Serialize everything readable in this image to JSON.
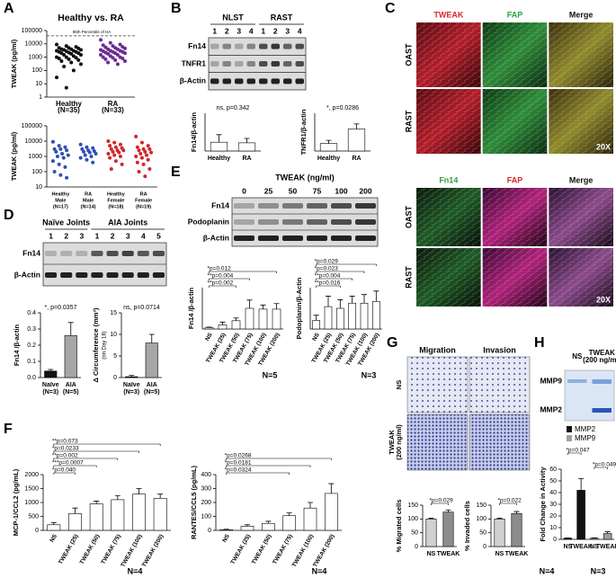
{
  "panels": {
    "A": {
      "label": "A",
      "top": {
        "type": "dot",
        "title": "Healthy vs. RA",
        "ylabel": "TWEAK (pg/ml)",
        "log": true,
        "ylim": [
          1,
          100000
        ],
        "yticks": [
          1,
          10,
          100,
          1000,
          10000,
          100000
        ],
        "threshold": 40000,
        "threshold_label": "95th Percentile of HA",
        "categories": [
          [
            "Healthy",
            "(N=35)"
          ],
          [
            "RA",
            "(N=33)"
          ]
        ],
        "colors": [
          "#111111",
          "#6a2c91"
        ],
        "values": [
          [
            9000,
            7000,
            6000,
            5000,
            5000,
            4500,
            4000,
            4000,
            3500,
            3500,
            3000,
            3000,
            2800,
            2500,
            2500,
            2200,
            2000,
            2000,
            1800,
            1500,
            1500,
            1200,
            1000,
            1000,
            900,
            800,
            700,
            600,
            500,
            400,
            300,
            200,
            100,
            30,
            5
          ],
          [
            20000,
            12000,
            9000,
            8000,
            7000,
            6000,
            5500,
            5000,
            4500,
            4000,
            4000,
            3500,
            3000,
            3000,
            2800,
            2500,
            2500,
            2200,
            2000,
            2000,
            1800,
            1500,
            1500,
            1200,
            1000,
            1000,
            900,
            800,
            700,
            600,
            500,
            400,
            300
          ]
        ]
      },
      "bottom": {
        "type": "dot",
        "ylabel": "TWEAK (pg/ml)",
        "log": true,
        "ylim": [
          10,
          100000
        ],
        "yticks": [
          10,
          100,
          1000,
          10000,
          100000
        ],
        "categories": [
          [
            "Healthy",
            "Male",
            "(N=17)"
          ],
          [
            "RA",
            "Male",
            "(N=14)"
          ],
          [
            "Healthy",
            "Female",
            "(N=18)"
          ],
          [
            "RA",
            "Female",
            "(N=19)"
          ]
        ],
        "colors": [
          "#2f4fb5",
          "#2f4fb5",
          "#d0262b",
          "#d0262b"
        ],
        "values": [
          [
            9000,
            5000,
            4000,
            3000,
            3000,
            2500,
            2000,
            1500,
            1200,
            1000,
            800,
            500,
            300,
            200,
            100,
            60,
            40
          ],
          [
            6000,
            4000,
            3500,
            3000,
            2500,
            2200,
            2000,
            1800,
            1500,
            1200,
            1000,
            800,
            600,
            400
          ],
          [
            10000,
            8000,
            6000,
            5000,
            4000,
            3500,
            3000,
            2500,
            2500,
            2000,
            1800,
            1500,
            1200,
            1000,
            800,
            500,
            300,
            150
          ],
          [
            20000,
            8000,
            5000,
            4000,
            3000,
            3000,
            2500,
            2000,
            1800,
            1500,
            1200,
            1000,
            800,
            600,
            400,
            300,
            150,
            100,
            50
          ]
        ]
      }
    },
    "B": {
      "label": "B",
      "blot": {
        "groups": [
          "NLST",
          "RAST"
        ],
        "lanes": [
          "1",
          "2",
          "3",
          "4",
          "1",
          "2",
          "3",
          "4"
        ],
        "rows": [
          "Fn14",
          "TNFR1",
          "β-Actin"
        ]
      },
      "fn14": {
        "type": "bar",
        "ylabel": "Fn14/β-actin",
        "ylim": [
          0,
          3
        ],
        "categories": [
          "Healthy",
          "RA"
        ],
        "values": [
          0.7,
          0.65
        ],
        "errors": [
          0.6,
          0.35
        ],
        "color": "#ffffff",
        "annotations": [
          "ns, p=0.342"
        ]
      },
      "tnfr1": {
        "type": "bar",
        "ylabel": "TNFR1/β-actin",
        "ylim": [
          0,
          0.6
        ],
        "categories": [
          "Healthy",
          "RA"
        ],
        "values": [
          0.12,
          0.35
        ],
        "errors": [
          0.05,
          0.08
        ],
        "color": "#ffffff",
        "annotations": [
          "*, p=0.0286"
        ]
      }
    },
    "C": {
      "label": "C",
      "top": {
        "columns": [
          "TWEAK",
          "FAP",
          "Merge"
        ],
        "column_colors": [
          "#d9262b",
          "#2ea043",
          "#111111"
        ],
        "rows": [
          "OAST",
          "RAST"
        ],
        "magnification": "20X"
      },
      "bottom": {
        "columns": [
          "Fn14",
          "FAP",
          "Merge"
        ],
        "column_colors": [
          "#2ea043",
          "#d9262b",
          "#111111"
        ],
        "rows": [
          "OAST",
          "RAST"
        ],
        "magnification": "20X"
      }
    },
    "D": {
      "label": "D",
      "blot": {
        "groups": [
          "Naïve Joints",
          "AIA Joints"
        ],
        "lanes": [
          "1",
          "2",
          "3",
          "1",
          "2",
          "3",
          "4",
          "5"
        ],
        "rows": [
          "Fn14",
          "β-Actin"
        ]
      },
      "fn14": {
        "type": "bar",
        "ylabel": "Fn14 /β-actin",
        "ylim": [
          0,
          0.4
        ],
        "yticks": [
          {
            "value": 0,
            "label": "0.0"
          },
          {
            "value": 0.1,
            "label": "0.1"
          },
          {
            "value": 0.2,
            "label": "0.2"
          },
          {
            "value": 0.3,
            "label": "0.3"
          },
          {
            "value": 0.4,
            "label": "0.4"
          }
        ],
        "categories": [
          "Naïve",
          "AIA"
        ],
        "counts": [
          "(N=3)",
          "(N=5)"
        ],
        "values": [
          0.04,
          0.26
        ],
        "errors": [
          0.01,
          0.08
        ],
        "colors": [
          "#111111",
          "#a6a6a6"
        ],
        "annotations": [
          "*, p=0.0357"
        ]
      },
      "circumference": {
        "type": "bar",
        "ylabel": "Δ Circumference (mm³)",
        "ylabel2": "(on Day 18)",
        "ylim": [
          0,
          15
        ],
        "yticks": [
          0,
          5,
          10,
          15
        ],
        "categories": [
          "Naïve",
          "AIA"
        ],
        "counts": [
          "(N=3)",
          "(N=5)"
        ],
        "values": [
          0.2,
          8
        ],
        "errors": [
          0.3,
          2
        ],
        "colors": [
          "#111111",
          "#a6a6a6"
        ],
        "annotations": [
          "ns, p=0.0714"
        ]
      }
    },
    "E": {
      "label": "E",
      "blot": {
        "title": "TWEAK (ng/ml)",
        "lanes": [
          "0",
          "25",
          "50",
          "75",
          "100",
          "200"
        ],
        "rows": [
          "Fn14",
          "Podoplanin",
          "β-Actin"
        ]
      },
      "fn14": {
        "type": "bar",
        "ylabel": "Fn14 /β-actin",
        "ylim": [
          0,
          1.5
        ],
        "rotate": true,
        "color": "#ffffff",
        "categories": [
          "NS",
          "TWEAK (25)",
          "TWEAK (50)",
          "TWEAK (75)",
          "TWEAK (100)",
          "TWEAK (200)"
        ],
        "values": [
          0.05,
          0.15,
          0.3,
          0.75,
          0.72,
          0.72
        ],
        "errors": [
          0.02,
          0.1,
          0.1,
          0.3,
          0.15,
          0.2
        ],
        "annotations": [
          "*p=0.012",
          "**p=0.004",
          "**p=0.002"
        ],
        "n_label": "N=5"
      },
      "podoplanin": {
        "type": "bar",
        "ylabel": "Podoplanin/β-Actin",
        "ylim": [
          0,
          1.2
        ],
        "rotate": true,
        "color": "#ffffff",
        "categories": [
          "NS",
          "TWEAK (25)",
          "TWEAK (50)",
          "TWEAK (75)",
          "TWEAK (100)",
          "TWEAK (200)"
        ],
        "values": [
          0.25,
          0.65,
          0.6,
          0.75,
          0.75,
          0.8
        ],
        "errors": [
          0.15,
          0.3,
          0.25,
          0.2,
          0.25,
          0.3
        ],
        "annotations": [
          "*p=0.029",
          "*p=0.023",
          "**p=0.004",
          "**p=0.016"
        ],
        "n_label": "N=3"
      }
    },
    "F": {
      "label": "F",
      "mcp1": {
        "type": "bar",
        "ylabel": "MCP-1/CCL2 (pg/mL)",
        "ylim": [
          0,
          2000
        ],
        "yticks": [
          0,
          500,
          1000,
          1500,
          2000
        ],
        "rotate": true,
        "color": "#ffffff",
        "categories": [
          "NS",
          "TWEAK (25)",
          "TWEAK (50)",
          "TWEAK (75)",
          "TWEAK (100)",
          "TWEAK (200)"
        ],
        "values": [
          200,
          600,
          950,
          1100,
          1300,
          1150
        ],
        "errors": [
          80,
          200,
          100,
          150,
          200,
          150
        ],
        "annotations": [
          "**p=0.073",
          "*p=0.0233",
          "**p=0.002",
          "***p=0.0007",
          "*p=0.040"
        ],
        "n_label": "N=4"
      },
      "rantes": {
        "type": "bar",
        "ylabel": "RANTES/CCL5 (pg/mL)",
        "ylim": [
          0,
          400
        ],
        "yticks": [
          0,
          100,
          200,
          300,
          400
        ],
        "rotate": true,
        "color": "#ffffff",
        "categories": [
          "NS",
          "TWEAK (25)",
          "TWEAK (50)",
          "TWEAK (75)",
          "TWEAK (100)",
          "TWEAK (200)"
        ],
        "values": [
          5,
          30,
          50,
          105,
          160,
          265
        ],
        "errors": [
          3,
          10,
          15,
          20,
          40,
          70
        ],
        "annotations": [
          "*p=0.0268",
          "*p=0.0181",
          "*p=0.0324"
        ],
        "n_label": "N=4"
      }
    },
    "G": {
      "label": "G",
      "images": {
        "columns": [
          "Migration",
          "Invasion"
        ],
        "rows": [
          [
            "NS"
          ],
          [
            "TWEAK",
            "(200 ng/ml)"
          ]
        ]
      },
      "migration": {
        "type": "bar",
        "ylabel": "% Migrated cells",
        "ylim": [
          0,
          150
        ],
        "yticks": [
          0,
          50,
          100,
          150
        ],
        "categories": [
          "NS",
          "TWEAK"
        ],
        "values": [
          100,
          125
        ],
        "errors": [
          3,
          8
        ],
        "colors": [
          "#d0d0d0",
          "#8c8c8c"
        ],
        "annotations": [
          "*p=0.029"
        ]
      },
      "invasion": {
        "type": "bar",
        "ylabel": "% Invaded cells",
        "ylim": [
          0,
          150
        ],
        "yticks": [
          0,
          50,
          100,
          150
        ],
        "categories": [
          "NS",
          "TWEAK"
        ],
        "values": [
          100,
          120
        ],
        "errors": [
          3,
          7
        ],
        "colors": [
          "#d0d0d0",
          "#8c8c8c"
        ],
        "annotations": [
          "*p=0.022"
        ]
      }
    },
    "H": {
      "label": "H",
      "gel": {
        "columns": [
          [
            "NS"
          ],
          [
            "TWEAK",
            "(200 ng/ml)"
          ]
        ],
        "rows": [
          "MMP9",
          "MMP2"
        ]
      },
      "chart": {
        "type": "bar",
        "ylabel": "Fold Change in Activity",
        "ylim": [
          0,
          60
        ],
        "yticks": [
          0,
          10,
          20,
          30,
          40,
          50,
          60
        ],
        "categories": [
          "NS",
          "TWEAK",
          "NS",
          "TWEAK"
        ],
        "values": [
          1,
          42,
          1,
          5
        ],
        "errors": [
          0.2,
          10,
          0.2,
          1.5
        ],
        "colors": [
          "#111111",
          "#111111",
          "#a0a0a0",
          "#a0a0a0"
        ],
        "legend": [
          {
            "name": "MMP2",
            "color": "#111111"
          },
          {
            "name": "MMP9",
            "color": "#a0a0a0"
          }
        ],
        "annotations": [
          "*p=0.047",
          "*p=0.049"
        ],
        "n_labels": [
          "N=4",
          "N=3"
        ]
      }
    }
  }
}
